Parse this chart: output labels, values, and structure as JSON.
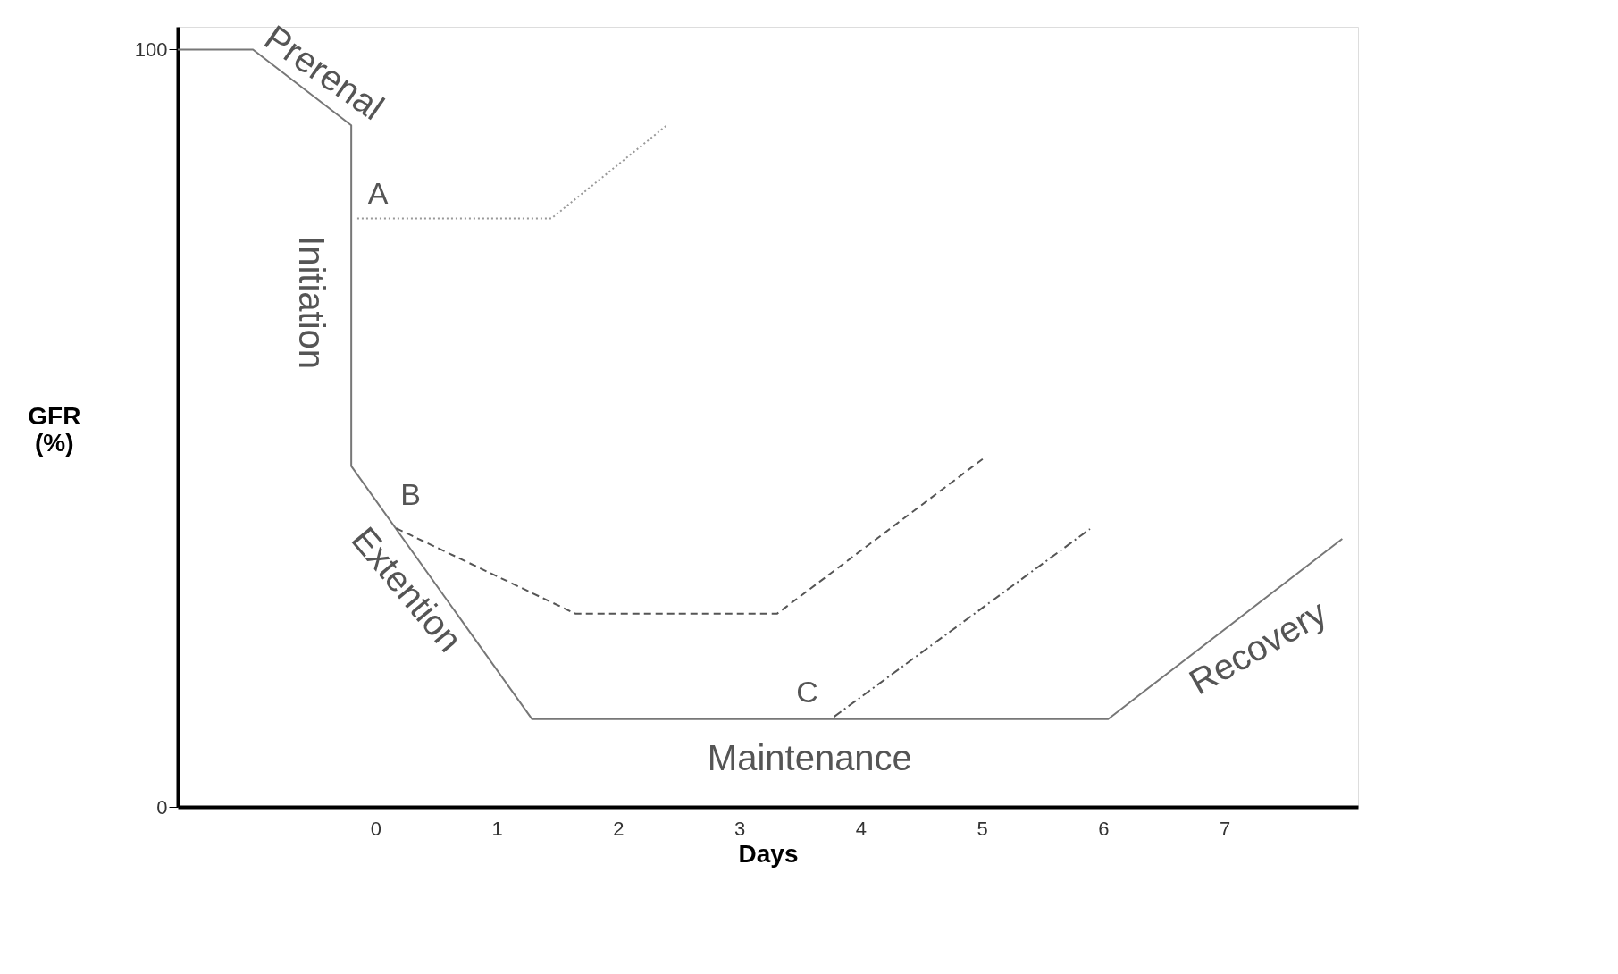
{
  "chart_data": {
    "type": "line",
    "xlabel": "Days",
    "ylabel": "GFR (%)",
    "xlim": [
      -1.63,
      8.1
    ],
    "ylim": [
      0,
      103
    ],
    "xticks": [
      0,
      1,
      2,
      3,
      4,
      5,
      6,
      7
    ],
    "yticks": [
      0,
      100
    ],
    "grid": false,
    "marker": "none",
    "series": [
      {
        "color": "#777777",
        "line_style": "solid",
        "x": [
          -1.63,
          -1.01,
          -0.2,
          -0.2,
          1.29,
          6.04,
          7.97
        ],
        "values": [
          100,
          100,
          90,
          45,
          11.6,
          11.6,
          35.4
        ]
      },
      {
        "color": "#999999",
        "line_style": "dotted",
        "x": [
          -0.15,
          1.45,
          2.41
        ],
        "values": [
          77.7,
          77.7,
          90.1
        ]
      },
      {
        "color": "#555555",
        "line_style": "dashed",
        "x": [
          0.17,
          1.65,
          3.31,
          5.02
        ],
        "values": [
          36.8,
          25.5,
          25.5,
          46.1
        ]
      },
      {
        "color": "#555555",
        "line_style": "dashdot",
        "x": [
          3.78,
          5.89
        ],
        "values": [
          11.9,
          36.7
        ]
      }
    ],
    "annotations": [
      "Prerenal",
      "Initiation",
      "Extention",
      "Maintenance",
      "Recovery",
      "A",
      "B",
      "C"
    ]
  }
}
